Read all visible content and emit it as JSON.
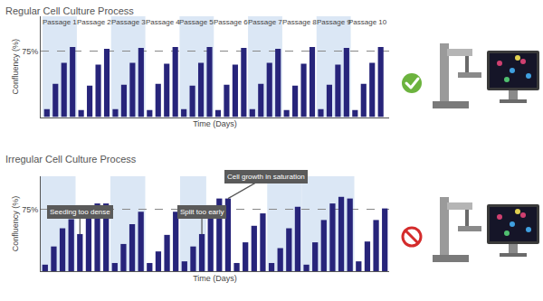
{
  "chart_data": [
    {
      "type": "bar",
      "title": "Regular Cell Culture Process",
      "x_label": "Time (Days)",
      "y_label": "Confluency (%)",
      "categories": [
        null,
        null,
        null,
        null,
        null,
        null,
        null,
        null,
        null,
        null,
        null,
        null,
        null,
        null,
        null,
        null,
        null,
        null,
        null,
        null,
        null,
        null,
        null,
        null,
        null,
        null,
        null,
        null,
        null,
        null,
        null,
        null,
        null,
        null,
        null,
        null,
        null,
        null,
        null,
        null
      ],
      "values": [
        9,
        38,
        62,
        80,
        8,
        36,
        60,
        78,
        9,
        37,
        62,
        79,
        8,
        38,
        61,
        80,
        9,
        36,
        62,
        80,
        8,
        37,
        60,
        79,
        9,
        38,
        62,
        78,
        8,
        36,
        61,
        80,
        9,
        37,
        60,
        79,
        8,
        38,
        62,
        80
      ],
      "color": "#27247a",
      "ylim": [
        0,
        115
      ],
      "yticks": [
        {
          "value": 75,
          "label": "75%"
        }
      ],
      "grid": true,
      "tick_labels": "y",
      "passages": [
        {
          "label": "Passage 1",
          "first": 0,
          "last": 3,
          "shaded": true
        },
        {
          "label": "Passage 2",
          "first": 4,
          "last": 7,
          "shaded": false
        },
        {
          "label": "Passage 3",
          "first": 8,
          "last": 11,
          "shaded": true
        },
        {
          "label": "Passage 4",
          "first": 12,
          "last": 15,
          "shaded": false
        },
        {
          "label": "Passage 5",
          "first": 16,
          "last": 19,
          "shaded": true
        },
        {
          "label": "Passage 6",
          "first": 20,
          "last": 23,
          "shaded": false
        },
        {
          "label": "Passage 7",
          "first": 24,
          "last": 27,
          "shaded": true
        },
        {
          "label": "Passage 8",
          "first": 28,
          "last": 31,
          "shaded": false
        },
        {
          "label": "Passage 9",
          "first": 32,
          "last": 35,
          "shaded": true
        },
        {
          "label": "Passage 10",
          "first": 36,
          "last": 39,
          "shaded": false
        }
      ]
    },
    {
      "type": "bar",
      "title": "Irregular Cell Culture Process",
      "x_label": "Time (Days)",
      "y_label": "Confluency (%)",
      "categories": [
        null,
        null,
        null,
        null,
        null,
        null,
        null,
        null,
        null,
        null,
        null,
        null,
        null,
        null,
        null,
        null,
        null,
        null,
        null,
        null,
        null,
        null,
        null,
        null,
        null,
        null,
        null,
        null,
        null,
        null,
        null,
        null,
        null,
        null,
        null,
        null,
        null,
        null,
        null,
        null
      ],
      "values": [
        8,
        30,
        52,
        63,
        45,
        72,
        82,
        82,
        10,
        33,
        57,
        72,
        10,
        24,
        44,
        72,
        12,
        30,
        45,
        75,
        88,
        88,
        10,
        35,
        55,
        70,
        10,
        28,
        52,
        78,
        8,
        35,
        62,
        82,
        90,
        88,
        12,
        36,
        62,
        76
      ],
      "color": "#27247a",
      "ylim": [
        0,
        115
      ],
      "yticks": [
        {
          "value": 75,
          "label": "75%"
        }
      ],
      "grid": true,
      "tick_labels": "y",
      "passages": [
        {
          "first": 0,
          "last": 3,
          "shaded": true
        },
        {
          "first": 8,
          "last": 11,
          "shaded": true
        },
        {
          "first": 16,
          "last": 18,
          "shaded": true
        },
        {
          "first": 26,
          "last": 29,
          "shaded": true
        },
        {
          "first": 30,
          "last": 35,
          "shaded": true
        }
      ],
      "annotations": [
        {
          "text": "Seeding too dense",
          "at": 4
        },
        {
          "text": "Split too early",
          "at": 18
        },
        {
          "text": "Cell growth in saturation",
          "at": 21
        }
      ]
    }
  ]
}
